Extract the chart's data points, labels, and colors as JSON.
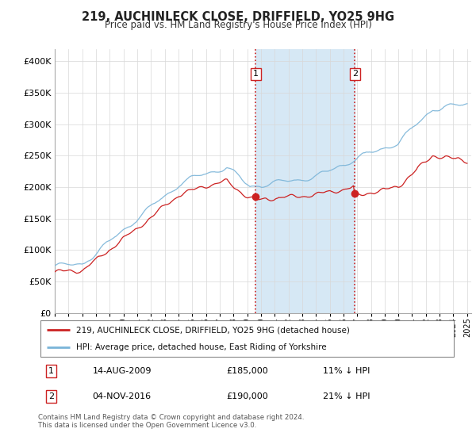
{
  "title": "219, AUCHINLECK CLOSE, DRIFFIELD, YO25 9HG",
  "subtitle": "Price paid vs. HM Land Registry's House Price Index (HPI)",
  "legend_line1": "219, AUCHINLECK CLOSE, DRIFFIELD, YO25 9HG (detached house)",
  "legend_line2": "HPI: Average price, detached house, East Riding of Yorkshire",
  "transaction1_date": "14-AUG-2009",
  "transaction1_price": "£185,000",
  "transaction1_hpi": "11% ↓ HPI",
  "transaction2_date": "04-NOV-2016",
  "transaction2_price": "£190,000",
  "transaction2_hpi": "21% ↓ HPI",
  "footer": "Contains HM Land Registry data © Crown copyright and database right 2024.\nThis data is licensed under the Open Government Licence v3.0.",
  "hpi_color": "#7ab4d8",
  "price_color": "#cc2222",
  "marker_color": "#cc2222",
  "vline_color": "#cc2222",
  "shading_color": "#d6e8f5",
  "ylim": [
    0,
    420000
  ],
  "yticks": [
    0,
    50000,
    100000,
    150000,
    200000,
    250000,
    300000,
    350000,
    400000
  ],
  "year_start": 1995,
  "year_end": 2025,
  "transaction1_year": 2009.625,
  "transaction2_year": 2016.843,
  "price_t1": 185000,
  "price_t2": 190000
}
